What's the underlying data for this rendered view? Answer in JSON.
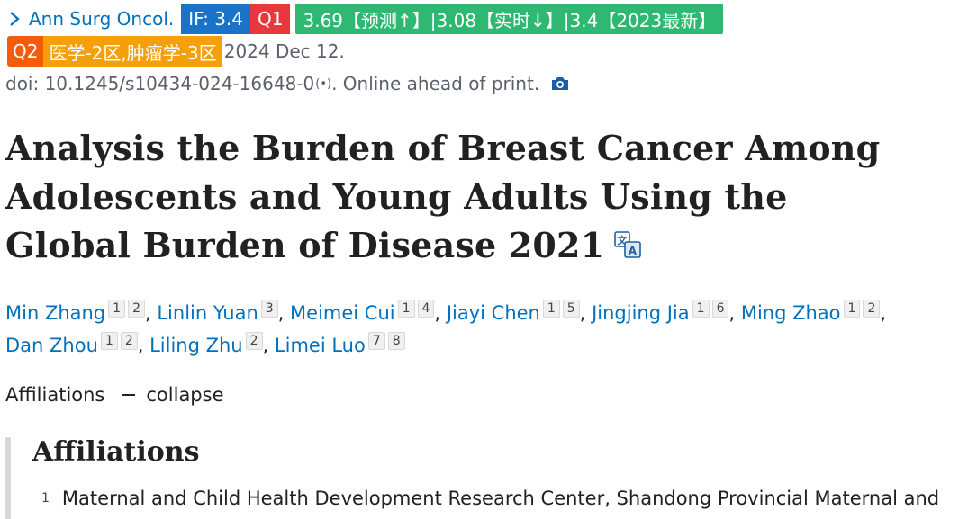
{
  "journal": {
    "name": "Ann Surg Oncol.",
    "icon": "chevron-right-icon"
  },
  "badges": {
    "impact_factor": "IF: 3.4",
    "jcr_quartile": "Q1",
    "prediction": "3.69【预测↑】|3.08【实时↓】|3.4【2023最新】",
    "cas_quartile": "Q2",
    "cas_division": "医学-2区,肿瘤学-3区"
  },
  "pub_date": "2024 Dec 12.",
  "doi": {
    "text": "doi: 10.1245/s10434-024-16648-0",
    "broadcast_glyph": "(•)",
    "status": ". Online ahead of print."
  },
  "title": "Analysis the Burden of Breast Cancer Among Adolescents and Young Adults Using the Global Burden of Disease 2021",
  "authors": [
    {
      "name": "Min Zhang",
      "affs": [
        "1",
        "2"
      ]
    },
    {
      "name": "Linlin Yuan",
      "affs": [
        "3"
      ]
    },
    {
      "name": "Meimei Cui",
      "affs": [
        "1",
        "4"
      ]
    },
    {
      "name": "Jiayi Chen",
      "affs": [
        "1",
        "5"
      ]
    },
    {
      "name": "Jingjing Jia",
      "affs": [
        "1",
        "6"
      ]
    },
    {
      "name": "Ming Zhao",
      "affs": [
        "1",
        "2"
      ]
    },
    {
      "name": "Dan Zhou",
      "affs": [
        "1",
        "2"
      ]
    },
    {
      "name": "Liling Zhu",
      "affs": [
        "2"
      ]
    },
    {
      "name": "Limei Luo",
      "affs": [
        "7",
        "8"
      ]
    }
  ],
  "affiliations_toggle": {
    "label": "Affiliations",
    "action": "collapse"
  },
  "affiliations_panel": {
    "heading": "Affiliations",
    "items": [
      {
        "num": "1",
        "text": "Maternal and Child Health Development Research Center, Shandong Provincial Maternal and"
      }
    ]
  },
  "colors": {
    "link": "#0071bc",
    "badge_if": "#1a73c7",
    "badge_q1": "#e8383d",
    "badge_pred": "#2eb872",
    "badge_q2": "#f25c0a",
    "badge_cas": "#f5a00a"
  }
}
